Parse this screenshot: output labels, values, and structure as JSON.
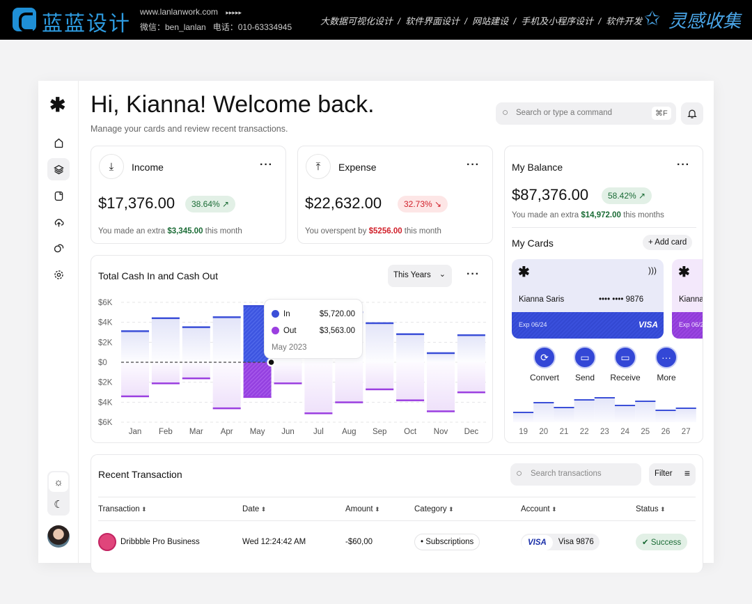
{
  "banner": {
    "brand": "蓝蓝设计",
    "url": "www.lanlanwork.com",
    "arrows": "▸▸▸▸▸",
    "contact": "微信：ben_lanlan   电话：010-63334945",
    "services": "大数据可视化设计  /  软件界面设计  /  网站建设  /  手机及小程序设计  /  软件开发",
    "collection": "灵感收集"
  },
  "header": {
    "title": "Hi, Kianna! Welcome back.",
    "subtitle": "Manage your cards and review recent transactions.",
    "search_placeholder": "Search or type a command",
    "shortcut": "⌘F"
  },
  "income": {
    "label": "Income",
    "amount": "$17,376.00",
    "change": "38.64% ↗",
    "note_pre": "You made an extra ",
    "note_value": "$3,345.00",
    "note_post": " this month"
  },
  "expense": {
    "label": "Expense",
    "amount": "$22,632.00",
    "change": "32.73% ↘",
    "note_pre": "You overspent by ",
    "note_value": "$5256.00",
    "note_post": " this month"
  },
  "balance": {
    "label": "My Balance",
    "amount": "$87,376.00",
    "change": "58.42% ↗",
    "note_pre": "You made an extra ",
    "note_value": "$14,972.00",
    "note_post": " this months",
    "cards_title": "My Cards",
    "add_card": "+ Add card",
    "card1": {
      "holder": "Kianna Saris",
      "number": "•••• •••• 9876",
      "exp": "Exp 06/24",
      "brand": "VISA"
    },
    "card2": {
      "holder": "Kianna",
      "exp": "Exp 06/24"
    },
    "actions": [
      "Convert",
      "Send",
      "Receive",
      "More"
    ],
    "mini_chart": {
      "categories": [
        "19",
        "20",
        "21",
        "22",
        "23",
        "24",
        "25",
        "26",
        "27"
      ],
      "values": [
        15,
        29,
        22,
        33,
        36,
        25,
        31,
        18,
        21
      ]
    }
  },
  "chart_card": {
    "title": "Total Cash In and Cash Out",
    "period": "This Years",
    "tooltip": {
      "in_label": "In",
      "in_value": "$5,720.00",
      "out_label": "Out",
      "out_value": "$3,563.00",
      "date": "May 2023"
    }
  },
  "chart_data": {
    "type": "bar",
    "categories": [
      "Jan",
      "Feb",
      "Mar",
      "Apr",
      "May",
      "Jun",
      "Jul",
      "Aug",
      "Sep",
      "Oct",
      "Nov",
      "Dec"
    ],
    "series": [
      {
        "name": "In",
        "values": [
          3.2,
          4.5,
          3.6,
          4.6,
          5.72,
          5.0,
          5.5,
          5.1,
          4.0,
          2.9,
          1.0,
          2.8
        ]
      },
      {
        "name": "Out",
        "values": [
          -3.5,
          -2.2,
          -1.7,
          -4.7,
          -3.563,
          -2.2,
          -5.2,
          -4.1,
          -2.8,
          -3.9,
          -5.0,
          -3.1
        ]
      }
    ],
    "ytick_labels": [
      "$6K",
      "$4K",
      "$2K",
      "$0",
      "$2K",
      "$4K",
      "$6K"
    ],
    "yticks": [
      6,
      4,
      2,
      0,
      -2,
      -4,
      -6
    ],
    "ylim": [
      -6,
      6
    ],
    "unit": "thousands USD",
    "grid": true,
    "highlighted": "May",
    "colors": {
      "in": "#3b4fd8",
      "out": "#9b3fe0"
    }
  },
  "transactions": {
    "title": "Recent Transaction",
    "search_placeholder": "Search transactions",
    "filter": "Filter",
    "columns": [
      "Transaction",
      "Date",
      "Amount",
      "Category",
      "Account",
      "Status"
    ],
    "rows": [
      {
        "name": "Dribbble Pro Business",
        "date": "Wed 12:24:42 AM",
        "amount": "-$60,00",
        "category": "Subscriptions",
        "account_brand": "VISA",
        "account": "Visa 9876",
        "status": "Success"
      }
    ]
  }
}
